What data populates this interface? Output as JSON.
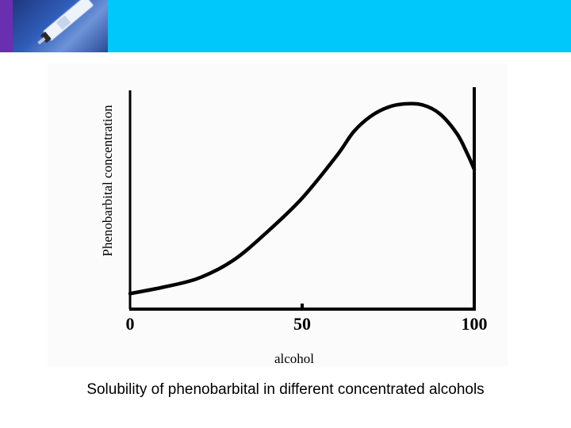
{
  "header": {
    "banner_color": "#00c8fb",
    "logo_icon": "syringe-icon"
  },
  "caption": "Solubility of phenobarbital in different concentrated alcohols",
  "chart_data": {
    "type": "line",
    "title": "",
    "xlabel": "alcohol",
    "ylabel": "Phenobarbital concentration",
    "xlim": [
      0,
      100
    ],
    "ylim": [
      0,
      100
    ],
    "x_ticks": [
      0,
      50,
      100
    ],
    "x_tick_labels": [
      "0",
      "50",
      "100"
    ],
    "grid": false,
    "legend": "none",
    "series": [
      {
        "values_x": [
          0,
          10,
          20,
          30,
          40,
          50,
          60,
          65,
          70,
          75,
          80,
          85,
          90,
          95,
          98,
          100
        ],
        "values_y": [
          7,
          10,
          14,
          22,
          35,
          50,
          69,
          80,
          87,
          91,
          92.5,
          92,
          88,
          79,
          70,
          63
        ],
        "color": "#000000"
      }
    ]
  }
}
